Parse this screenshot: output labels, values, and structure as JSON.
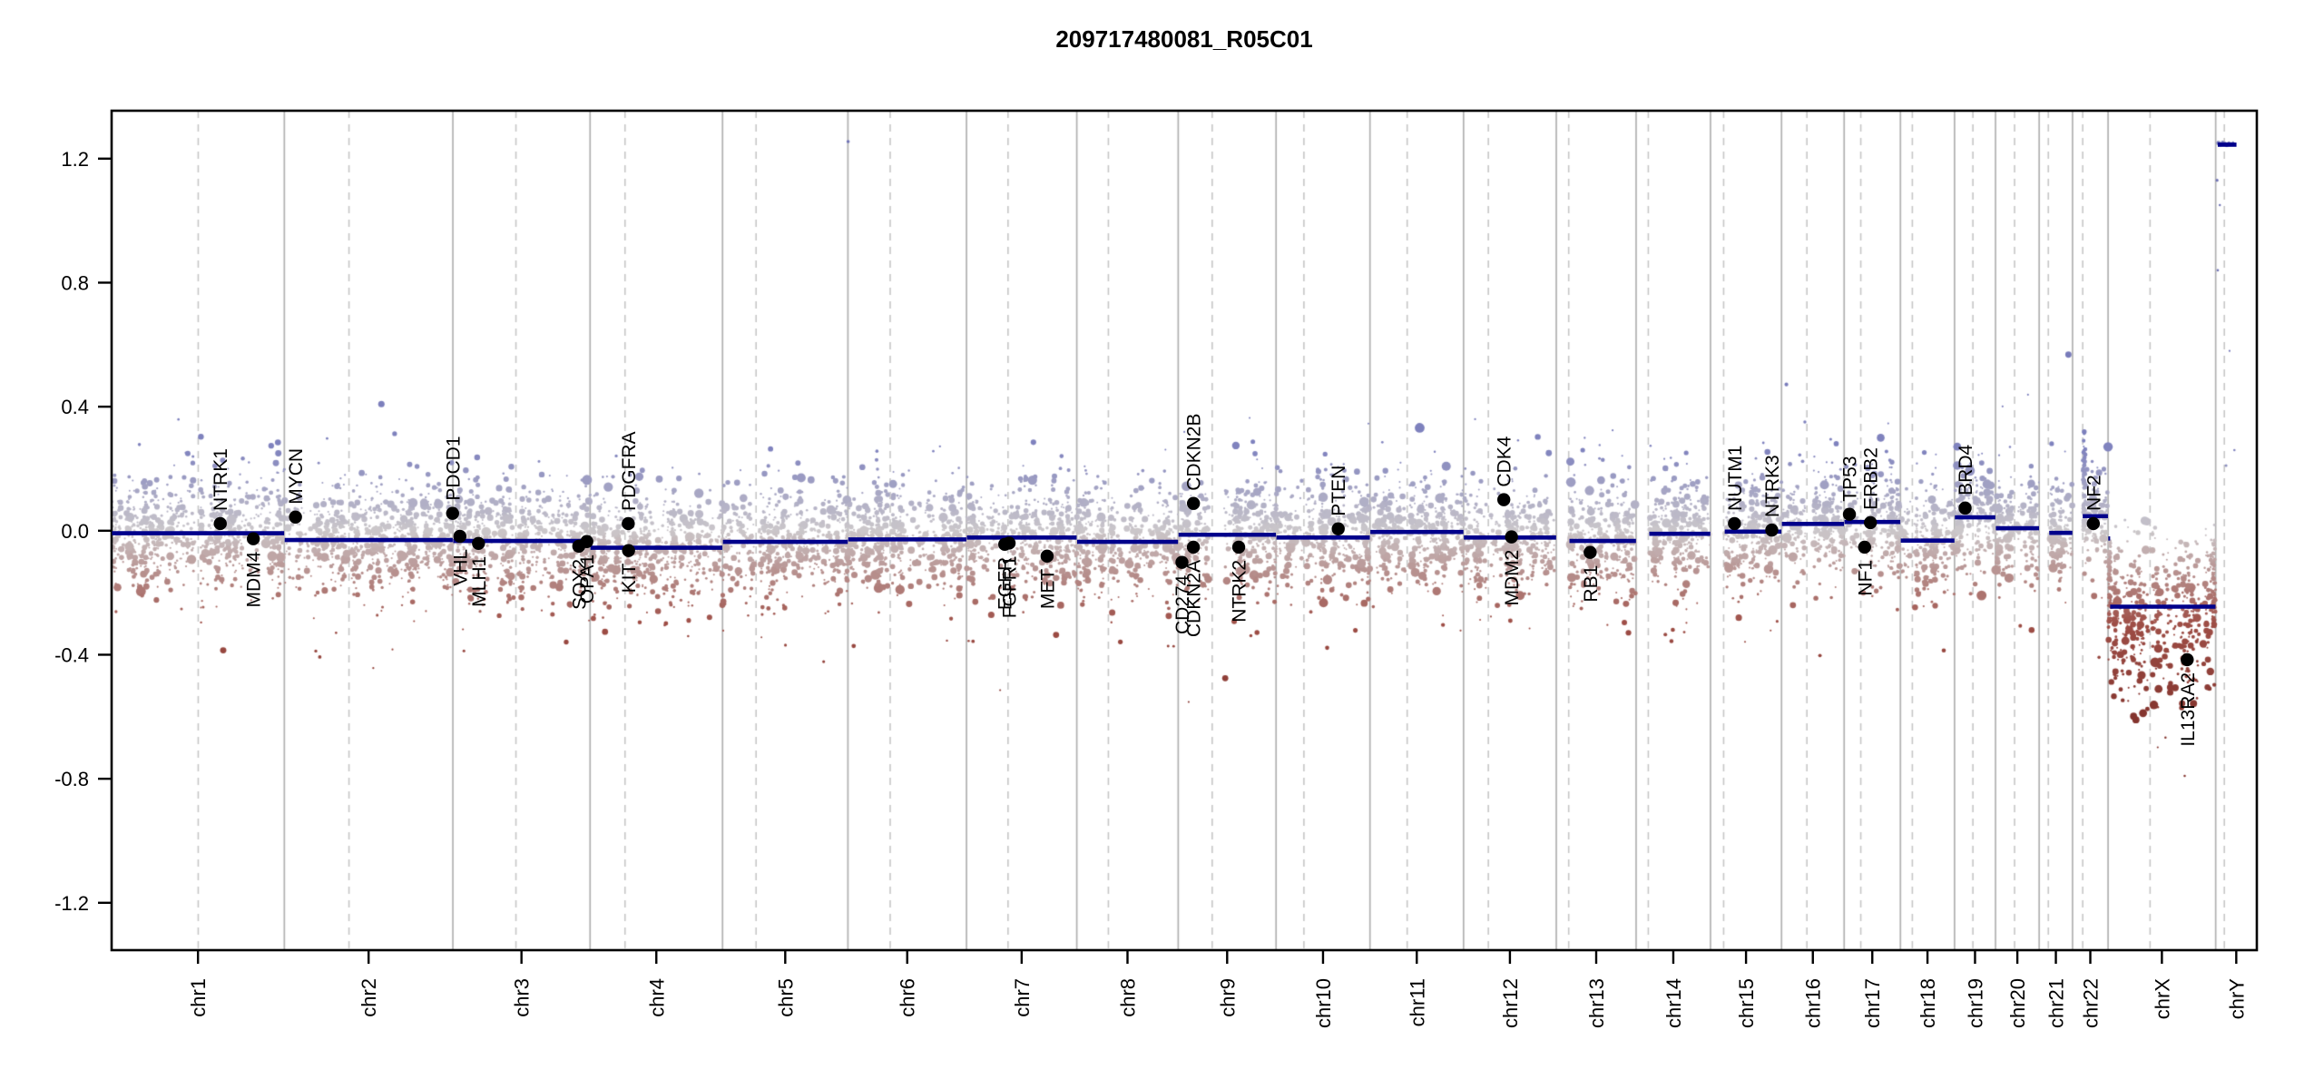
{
  "title": "209717480081_R05C01",
  "y_axis": {
    "tick_values": [
      1.2,
      0.8,
      0.4,
      0.0,
      -0.4,
      -0.8,
      -1.2
    ],
    "tick_labels": [
      "1.2",
      "0.8",
      "0.4",
      "0.0",
      "-0.4",
      "-0.8",
      "-1.2"
    ]
  },
  "colors": {
    "segment": "#00008b",
    "boundary_line": "#b0b0b0",
    "centromere_line": "#c6c6c6",
    "gene_dot": "#000000",
    "point_mid": "#cbc7ca",
    "point_gain": "#8083be",
    "point_loss": "#96463e",
    "title_text": "#000000"
  },
  "chart_data": {
    "type": "scatter",
    "title": "209717480081_R05C01",
    "xlabel": "",
    "ylabel": "",
    "y_ticks": [
      1.2,
      0.8,
      0.4,
      0.0,
      -0.4,
      -0.8,
      -1.2
    ],
    "y_visible_range": [
      -1.35,
      1.35
    ],
    "grid": "chromosome boundaries solid, centromeres dashed",
    "legend": "none",
    "chromosomes": [
      {
        "name": "chr1",
        "length_mb": 249.25,
        "centromere_mb": 125.0,
        "segments": [
          {
            "start_mb": 0.5,
            "end_mb": 249.0,
            "value": -0.008
          }
        ]
      },
      {
        "name": "chr2",
        "length_mb": 243.2,
        "centromere_mb": 93.3,
        "segments": [
          {
            "start_mb": 0.5,
            "end_mb": 243.0,
            "value": -0.03
          }
        ]
      },
      {
        "name": "chr3",
        "length_mb": 198.02,
        "centromere_mb": 91.0,
        "segments": [
          {
            "start_mb": 0.5,
            "end_mb": 197.8,
            "value": -0.033
          }
        ]
      },
      {
        "name": "chr4",
        "length_mb": 191.15,
        "centromere_mb": 50.4,
        "segments": [
          {
            "start_mb": 0.5,
            "end_mb": 190.9,
            "value": -0.055
          }
        ]
      },
      {
        "name": "chr5",
        "length_mb": 180.92,
        "centromere_mb": 48.4,
        "segments": [
          {
            "start_mb": 0.5,
            "end_mb": 180.7,
            "value": -0.036
          }
        ]
      },
      {
        "name": "chr6",
        "length_mb": 171.12,
        "centromere_mb": 61.0,
        "segments": [
          {
            "start_mb": 0.5,
            "end_mb": 170.9,
            "value": -0.028
          }
        ]
      },
      {
        "name": "chr7",
        "length_mb": 159.14,
        "centromere_mb": 59.9,
        "segments": [
          {
            "start_mb": 0.5,
            "end_mb": 158.9,
            "value": -0.022
          }
        ]
      },
      {
        "name": "chr8",
        "length_mb": 146.36,
        "centromere_mb": 45.6,
        "segments": [
          {
            "start_mb": 0.5,
            "end_mb": 146.1,
            "value": -0.036
          }
        ]
      },
      {
        "name": "chr9",
        "length_mb": 141.21,
        "centromere_mb": 49.0,
        "segments": [
          {
            "start_mb": 0.5,
            "end_mb": 141.0,
            "value": -0.013
          }
        ]
      },
      {
        "name": "chr10",
        "length_mb": 135.53,
        "centromere_mb": 40.2,
        "segments": [
          {
            "start_mb": 0.5,
            "end_mb": 135.3,
            "value": -0.022
          }
        ]
      },
      {
        "name": "chr11",
        "length_mb": 135.01,
        "centromere_mb": 53.7,
        "segments": [
          {
            "start_mb": 0.5,
            "end_mb": 134.8,
            "value": -0.004
          }
        ]
      },
      {
        "name": "chr12",
        "length_mb": 133.85,
        "centromere_mb": 35.8,
        "segments": [
          {
            "start_mb": 0.5,
            "end_mb": 133.6,
            "value": -0.022
          }
        ]
      },
      {
        "name": "chr13",
        "length_mb": 115.17,
        "centromere_mb": 17.9,
        "segments": [
          {
            "start_mb": 19.0,
            "end_mb": 115.0,
            "value": -0.033
          }
        ]
      },
      {
        "name": "chr14",
        "length_mb": 107.35,
        "centromere_mb": 17.6,
        "segments": [
          {
            "start_mb": 19.0,
            "end_mb": 107.1,
            "value": -0.01
          }
        ]
      },
      {
        "name": "chr15",
        "length_mb": 102.53,
        "centromere_mb": 19.0,
        "segments": [
          {
            "start_mb": 20.5,
            "end_mb": 102.3,
            "value": -0.003
          }
        ]
      },
      {
        "name": "chr16",
        "length_mb": 90.35,
        "centromere_mb": 36.6,
        "segments": [
          {
            "start_mb": 0.5,
            "end_mb": 90.1,
            "value": 0.022
          }
        ]
      },
      {
        "name": "chr17",
        "length_mb": 81.2,
        "centromere_mb": 24.0,
        "segments": [
          {
            "start_mb": 0.5,
            "end_mb": 81.0,
            "value": 0.028
          }
        ]
      },
      {
        "name": "chr18",
        "length_mb": 78.08,
        "centromere_mb": 17.2,
        "segments": [
          {
            "start_mb": 0.5,
            "end_mb": 77.9,
            "value": -0.032
          }
        ]
      },
      {
        "name": "chr19",
        "length_mb": 59.13,
        "centromere_mb": 26.5,
        "segments": [
          {
            "start_mb": 0.5,
            "end_mb": 58.9,
            "value": 0.043
          }
        ]
      },
      {
        "name": "chr20",
        "length_mb": 63.03,
        "centromere_mb": 27.5,
        "segments": [
          {
            "start_mb": 0.5,
            "end_mb": 62.8,
            "value": 0.008
          }
        ]
      },
      {
        "name": "chr21",
        "length_mb": 48.13,
        "centromere_mb": 13.2,
        "segments": [
          {
            "start_mb": 14.5,
            "end_mb": 47.9,
            "value": -0.007
          }
        ]
      },
      {
        "name": "chr22",
        "length_mb": 51.3,
        "centromere_mb": 14.7,
        "segments": [
          {
            "start_mb": 14.7,
            "end_mb": 51.1,
            "value": 0.047
          }
        ]
      },
      {
        "name": "chrX",
        "length_mb": 155.27,
        "centromere_mb": 60.6,
        "segments": [
          {
            "start_mb": 0.3,
            "end_mb": 3.0,
            "value": -0.025
          },
          {
            "start_mb": 3.0,
            "end_mb": 155.0,
            "value": -0.245
          }
        ]
      },
      {
        "name": "chrY",
        "length_mb": 59.37,
        "centromere_mb": 12.5,
        "segments": [
          {
            "start_mb": 3.0,
            "end_mb": 30.0,
            "value": 1.245
          }
        ]
      }
    ],
    "genes": [
      {
        "name": "NTRK1",
        "chr": "chr1",
        "pos_mb": 156.8,
        "value": 0.023,
        "label_side": "above"
      },
      {
        "name": "MDM4",
        "chr": "chr1",
        "pos_mb": 204.5,
        "value": -0.026,
        "label_side": "below"
      },
      {
        "name": "MYCN",
        "chr": "chr2",
        "pos_mb": 16.1,
        "value": 0.044,
        "label_side": "above"
      },
      {
        "name": "PDCD1",
        "chr": "chr2",
        "pos_mb": 242.8,
        "value": 0.056,
        "label_side": "above"
      },
      {
        "name": "VHL",
        "chr": "chr3",
        "pos_mb": 10.2,
        "value": -0.018,
        "label_side": "below"
      },
      {
        "name": "MLH1",
        "chr": "chr3",
        "pos_mb": 37.0,
        "value": -0.041,
        "label_side": "below"
      },
      {
        "name": "SOX2",
        "chr": "chr3",
        "pos_mb": 181.7,
        "value": -0.05,
        "label_side": "below"
      },
      {
        "name": "OPA1",
        "chr": "chr3",
        "pos_mb": 193.3,
        "value": -0.035,
        "label_side": "below"
      },
      {
        "name": "PDGFRA",
        "chr": "chr4",
        "pos_mb": 55.1,
        "value": 0.023,
        "label_side": "above"
      },
      {
        "name": "KIT",
        "chr": "chr4",
        "pos_mb": 55.5,
        "value": -0.064,
        "label_side": "below"
      },
      {
        "name": "EGFR",
        "chr": "chr7",
        "pos_mb": 55.2,
        "value": -0.044,
        "label_side": "below"
      },
      {
        "name": "FGFR1",
        "chr": "chr7",
        "pos_mb": 61.5,
        "value": -0.04,
        "label_side": "below"
      },
      {
        "name": "MET",
        "chr": "chr7",
        "pos_mb": 116.3,
        "value": -0.082,
        "label_side": "below"
      },
      {
        "name": "CD274",
        "chr": "chr9",
        "pos_mb": 5.4,
        "value": -0.102,
        "label_side": "below"
      },
      {
        "name": "CDKN2A",
        "chr": "chr9",
        "pos_mb": 21.9,
        "value": -0.053,
        "label_side": "below"
      },
      {
        "name": "CDKN2B",
        "chr": "chr9",
        "pos_mb": 22.0,
        "value": 0.088,
        "label_side": "above"
      },
      {
        "name": "NTRK2",
        "chr": "chr9",
        "pos_mb": 87.3,
        "value": -0.053,
        "label_side": "below"
      },
      {
        "name": "PTEN",
        "chr": "chr10",
        "pos_mb": 89.7,
        "value": 0.006,
        "label_side": "above"
      },
      {
        "name": "CDK4",
        "chr": "chr12",
        "pos_mb": 58.1,
        "value": 0.1,
        "label_side": "above"
      },
      {
        "name": "MDM2",
        "chr": "chr12",
        "pos_mb": 69.2,
        "value": -0.02,
        "label_side": "below"
      },
      {
        "name": "RB1",
        "chr": "chr13",
        "pos_mb": 48.9,
        "value": -0.07,
        "label_side": "below"
      },
      {
        "name": "NUTM1",
        "chr": "chr15",
        "pos_mb": 34.6,
        "value": 0.023,
        "label_side": "above"
      },
      {
        "name": "NTRK3",
        "chr": "chr15",
        "pos_mb": 88.4,
        "value": 0.002,
        "label_side": "above"
      },
      {
        "name": "TP53",
        "chr": "chr17",
        "pos_mb": 7.6,
        "value": 0.053,
        "label_side": "above"
      },
      {
        "name": "NF1",
        "chr": "chr17",
        "pos_mb": 29.5,
        "value": -0.053,
        "label_side": "below"
      },
      {
        "name": "ERBB2",
        "chr": "chr17",
        "pos_mb": 37.9,
        "value": 0.026,
        "label_side": "above"
      },
      {
        "name": "BRD4",
        "chr": "chr19",
        "pos_mb": 15.3,
        "value": 0.073,
        "label_side": "above"
      },
      {
        "name": "NF2",
        "chr": "chr22",
        "pos_mb": 30.0,
        "value": 0.023,
        "label_side": "above"
      },
      {
        "name": "IL13RA2",
        "chr": "chrX",
        "pos_mb": 114.2,
        "value": -0.416,
        "label_side": "below"
      }
    ],
    "extra_points": [
      {
        "chr": "chr6",
        "pos_mb": 0.3,
        "value": 1.255,
        "r": 1.8
      },
      {
        "chr": "chrY",
        "pos_mb": 4,
        "value": 1.25,
        "r": 2.4
      },
      {
        "chr": "chrY",
        "pos_mb": 7,
        "value": 1.246,
        "r": 2.4
      },
      {
        "chr": "chrY",
        "pos_mb": 10,
        "value": 1.252,
        "r": 2.0
      },
      {
        "chr": "chrY",
        "pos_mb": 13,
        "value": 1.248,
        "r": 2.4
      },
      {
        "chr": "chrY",
        "pos_mb": 16,
        "value": 1.243,
        "r": 2.0
      },
      {
        "chr": "chrY",
        "pos_mb": 19,
        "value": 1.25,
        "r": 2.0
      },
      {
        "chr": "chrY",
        "pos_mb": 22,
        "value": 1.247,
        "r": 2.0
      },
      {
        "chr": "chrY",
        "pos_mb": 25,
        "value": 1.251,
        "r": 1.6
      },
      {
        "chr": "chrY",
        "pos_mb": 2,
        "value": 1.13,
        "r": 1.6
      },
      {
        "chr": "chrY",
        "pos_mb": 3,
        "value": 0.84,
        "r": 1.4
      },
      {
        "chr": "chrY",
        "pos_mb": 6,
        "value": 1.05,
        "r": 1.2
      },
      {
        "chr": "chrY",
        "pos_mb": 15,
        "value": 0.21,
        "r": 1.5
      },
      {
        "chr": "chrY",
        "pos_mb": 27,
        "value": 0.26,
        "r": 1.3
      },
      {
        "chr": "chrY",
        "pos_mb": 20,
        "value": 0.58,
        "r": 1.1
      }
    ],
    "cloud": {
      "points_per_mb": 3.1,
      "sd": 0.082,
      "tail_prob": 0.1,
      "chrX_center": -0.26,
      "chrX_sd": 0.115,
      "chr22_spike": {
        "start_mb": 15.0,
        "end_mb": 18.5,
        "max_value": 0.32,
        "n": 85
      }
    }
  }
}
